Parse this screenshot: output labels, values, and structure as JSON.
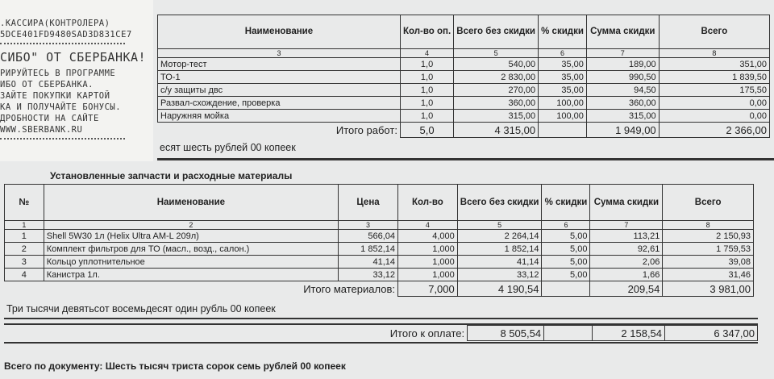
{
  "receipt": {
    "lines": [
      ".КАССИРА(КОНТРОЛЕРА)",
      "5DCE401FD9480SAD3D831CE7",
      "СИБО\" ОТ СБЕРБАНКА!",
      "РИРУЙТЕСЬ В ПРОГРАММЕ",
      "ИБО ОТ СБЕРБАНКА.",
      "ЗАЙТЕ ПОКУПКИ КАРТОЙ",
      "КА И ПОЛУЧАЙТЕ БОНУСЫ.",
      "ДРОБНОСТИ НА САЙТЕ",
      "WWW.SBERBANK.RU"
    ]
  },
  "works": {
    "headers": [
      "Наименование",
      "Кол-во оп.",
      "Всего без скидки",
      "% скидки",
      "Сумма скидки",
      "Всего"
    ],
    "numbers": [
      "3",
      "4",
      "5",
      "6",
      "7",
      "8"
    ],
    "rows": [
      [
        "Мотор-тест",
        "1,0",
        "540,00",
        "35,00",
        "189,00",
        "351,00"
      ],
      [
        "ТО-1",
        "1,0",
        "2 830,00",
        "35,00",
        "990,50",
        "1 839,50"
      ],
      [
        "с/у защиты двс",
        "1,0",
        "270,00",
        "35,00",
        "94,50",
        "175,50"
      ],
      [
        "Развал-схождение, проверка",
        "1,0",
        "360,00",
        "100,00",
        "360,00",
        "0,00"
      ],
      [
        "Наружняя мойка",
        "1,0",
        "315,00",
        "100,00",
        "315,00",
        "0,00"
      ]
    ],
    "total": {
      "label": "Итого работ:",
      "qty": "5,0",
      "no_discount": "4 315,00",
      "discount": "1 949,00",
      "sum": "2 366,00"
    },
    "words": "есят шесть рублей 00 копеек"
  },
  "parts": {
    "title": "Установленные запчасти и расходные материалы",
    "headers": [
      "№",
      "Наименование",
      "Цена",
      "Кол-во",
      "Всего без скидки",
      "% скидки",
      "Сумма скидки",
      "Всего"
    ],
    "numbers": [
      "1",
      "2",
      "3",
      "4",
      "5",
      "6",
      "7",
      "8"
    ],
    "rows": [
      [
        "1",
        "Shell 5W30  1л (Helix Ultra AM-L 209л)",
        "566,04",
        "4,000",
        "2 264,14",
        "5,00",
        "113,21",
        "2 150,93"
      ],
      [
        "2",
        "Комплект фильтров для ТО (масл., возд., салон.)",
        "1 852,14",
        "1,000",
        "1 852,14",
        "5,00",
        "92,61",
        "1 759,53"
      ],
      [
        "3",
        "Кольцо уплотнительное",
        "41,14",
        "1,000",
        "41,14",
        "5,00",
        "2,06",
        "39,08"
      ],
      [
        "4",
        "Канистра 1л.",
        "33,12",
        "1,000",
        "33,12",
        "5,00",
        "1,66",
        "31,46"
      ]
    ],
    "total": {
      "label": "Итого материалов:",
      "qty": "7,000",
      "no_discount": "4 190,54",
      "discount": "209,54",
      "sum": "3 981,00"
    },
    "words": "Три тысячи девятьсот восемьдесят один рубль 00 копеек"
  },
  "payment": {
    "label": "Итого к оплате:",
    "no_discount": "8 505,54",
    "discount": "2 158,54",
    "sum": "6 347,00"
  },
  "document_total": "Всего по документу: Шесть тысяч триста сорок семь рублей 00 копеек"
}
